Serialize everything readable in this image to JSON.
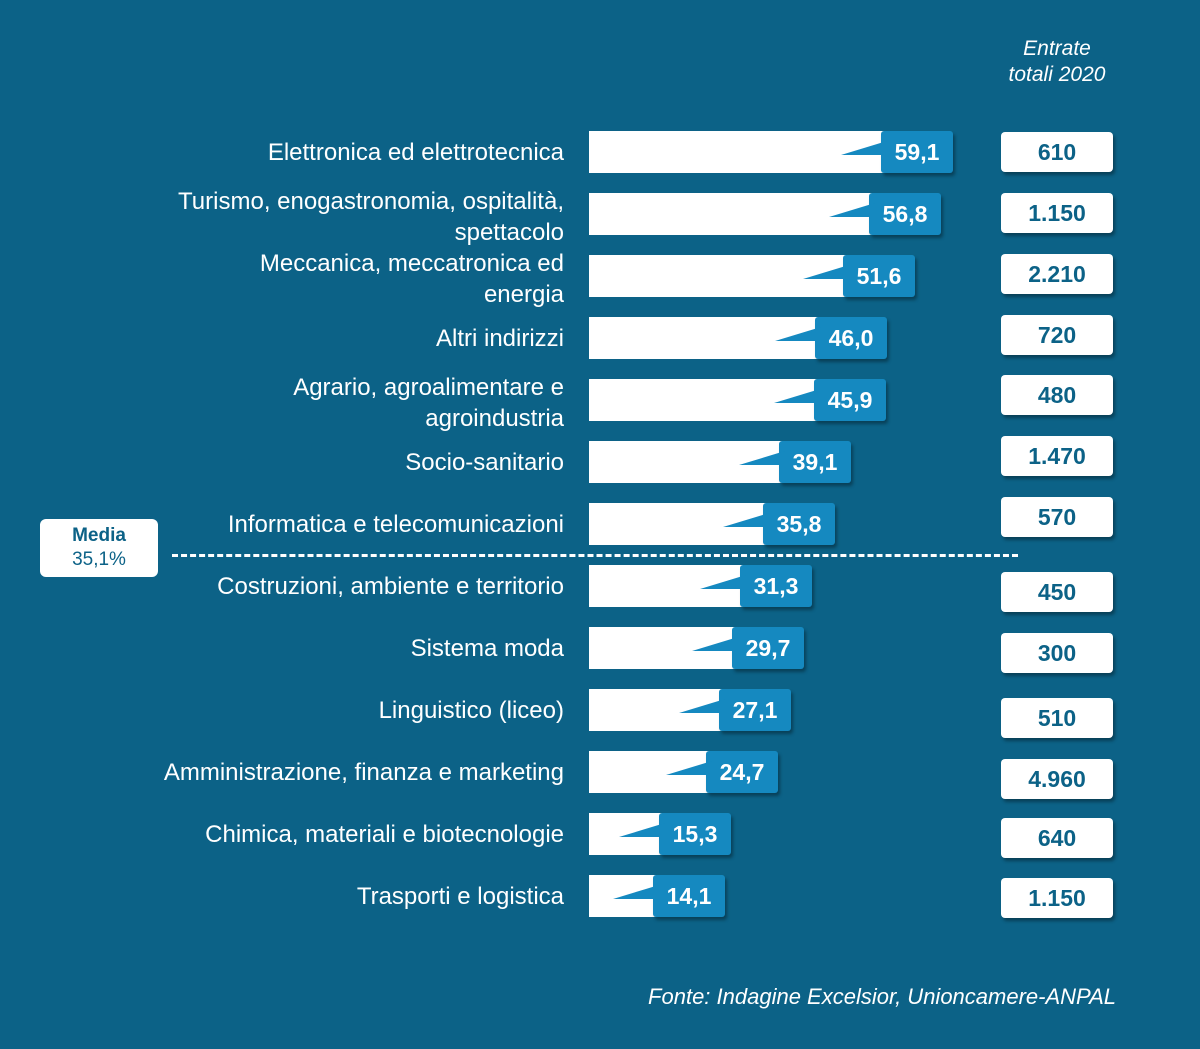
{
  "chart_data": {
    "type": "bar",
    "orientation": "horizontal",
    "categories": [
      "Elettronica ed elettrotecnica",
      "Turismo, enogastronomia, ospitalità, spettacolo",
      "Meccanica, meccatronica ed energia",
      "Altri indirizzi",
      "Agrario, agroalimentare e agroindustria",
      "Socio-sanitario",
      "Informatica e telecomunicazioni",
      "Costruzioni, ambiente e territorio",
      "Sistema moda",
      "Linguistico (liceo)",
      "Amministrazione, finanza e marketing",
      "Chimica, materiali e biotecnologie",
      "Trasporti e logistica"
    ],
    "category_lines": [
      [
        "Elettronica ed elettrotecnica"
      ],
      [
        "Turismo, enogastronomia, ospitalità,",
        "spettacolo"
      ],
      [
        "Meccanica, meccatronica ed",
        "energia"
      ],
      [
        "Altri indirizzi"
      ],
      [
        "Agrario, agroalimentare e",
        "agroindustria"
      ],
      [
        "Socio-sanitario"
      ],
      [
        "Informatica e telecomunicazioni"
      ],
      [
        "Costruzioni, ambiente e territorio"
      ],
      [
        "Sistema moda"
      ],
      [
        "Linguistico (liceo)"
      ],
      [
        "Amministrazione, finanza e marketing"
      ],
      [
        "Chimica, materiali e biotecnologie"
      ],
      [
        "Trasporti e logistica"
      ]
    ],
    "values": [
      59.1,
      56.8,
      51.6,
      46.0,
      45.9,
      39.1,
      35.8,
      31.3,
      29.7,
      27.1,
      24.7,
      15.3,
      14.1
    ],
    "value_labels": [
      "59,1",
      "56,8",
      "51,6",
      "46,0",
      "45,9",
      "39,1",
      "35,8",
      "31,3",
      "29,7",
      "27,1",
      "24,7",
      "15,3",
      "14,1"
    ],
    "entrate_header": [
      "Entrate",
      "totali 2020"
    ],
    "entrate": [
      "610",
      "1.150",
      "2.210",
      "720",
      "480",
      "1.470",
      "570",
      "450",
      "300",
      "510",
      "4.960",
      "640",
      "1.150"
    ],
    "average": {
      "value": 35.1,
      "label_1": "Media",
      "label_2": "35,1%"
    },
    "source": "Fonte: Indagine Excelsior, Unioncamere-ANPAL",
    "colors": {
      "background": "#0c6287",
      "bar": "#ffffff",
      "callout": "#1589c0",
      "text": "#ffffff"
    }
  }
}
